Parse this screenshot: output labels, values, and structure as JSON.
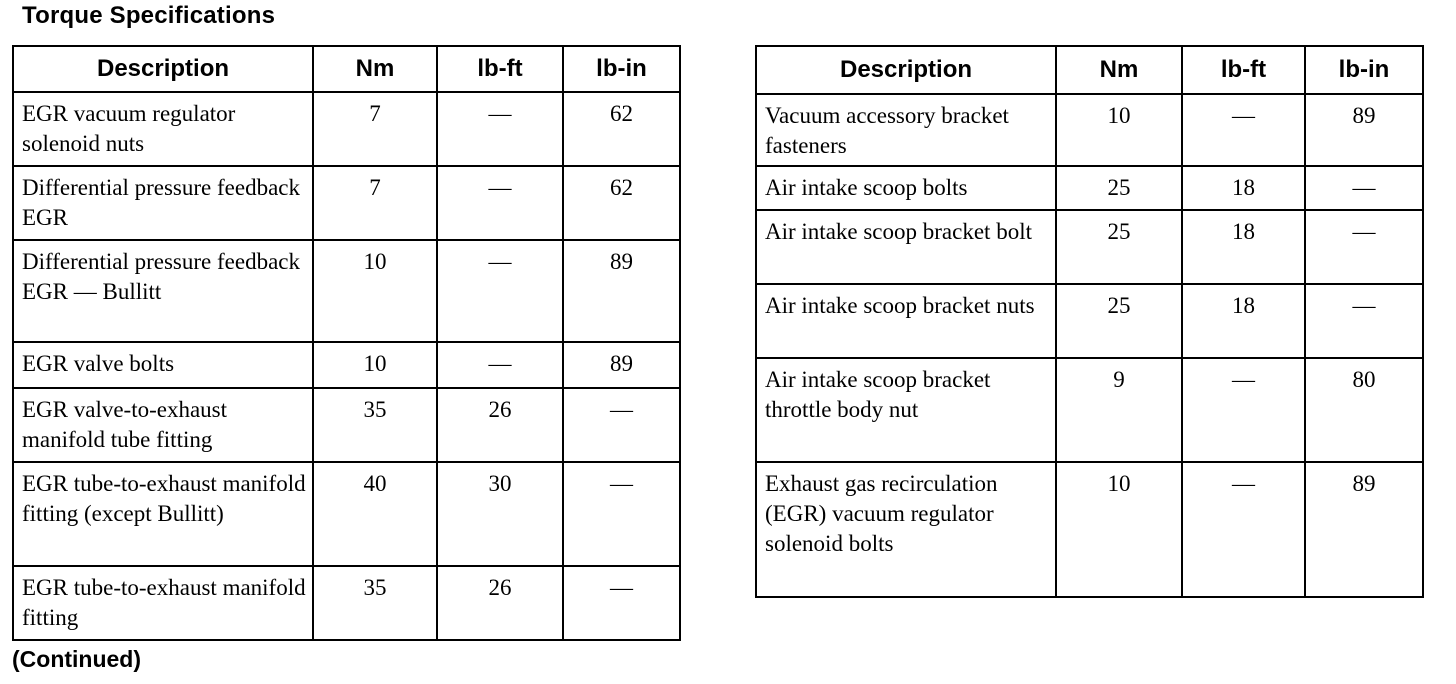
{
  "title": "Torque Specifications",
  "footer": "(Continued)",
  "columns": [
    "Description",
    "Nm",
    "lb-ft",
    "lb-in"
  ],
  "left_table": {
    "rows": [
      [
        "EGR vacuum regulator solenoid nuts",
        "7",
        "—",
        "62"
      ],
      [
        "Differential pressure feedback EGR",
        "7",
        "—",
        "62"
      ],
      [
        "Differential pressure feedback EGR — Bullitt",
        "10",
        "—",
        "89"
      ],
      [
        "EGR valve bolts",
        "10",
        "—",
        "89"
      ],
      [
        "EGR valve-to-exhaust manifold tube fitting",
        "35",
        "26",
        "—"
      ],
      [
        "EGR tube-to-exhaust manifold fitting (except Bullitt)",
        "40",
        "30",
        "—"
      ],
      [
        "EGR tube-to-exhaust manifold fitting",
        "35",
        "26",
        "—"
      ]
    ]
  },
  "right_table": {
    "rows": [
      [
        "Vacuum accessory bracket fasteners",
        "10",
        "—",
        "89"
      ],
      [
        "Air intake scoop bolts",
        "25",
        "18",
        "—"
      ],
      [
        "Air intake scoop bracket bolt",
        "25",
        "18",
        "—"
      ],
      [
        "Air intake scoop bracket nuts",
        "25",
        "18",
        "—"
      ],
      [
        "Air intake scoop bracket throttle body nut",
        "9",
        "—",
        "80"
      ],
      [
        "Exhaust gas recirculation (EGR) vacuum regulator solenoid bolts",
        "10",
        "—",
        "89"
      ]
    ]
  }
}
